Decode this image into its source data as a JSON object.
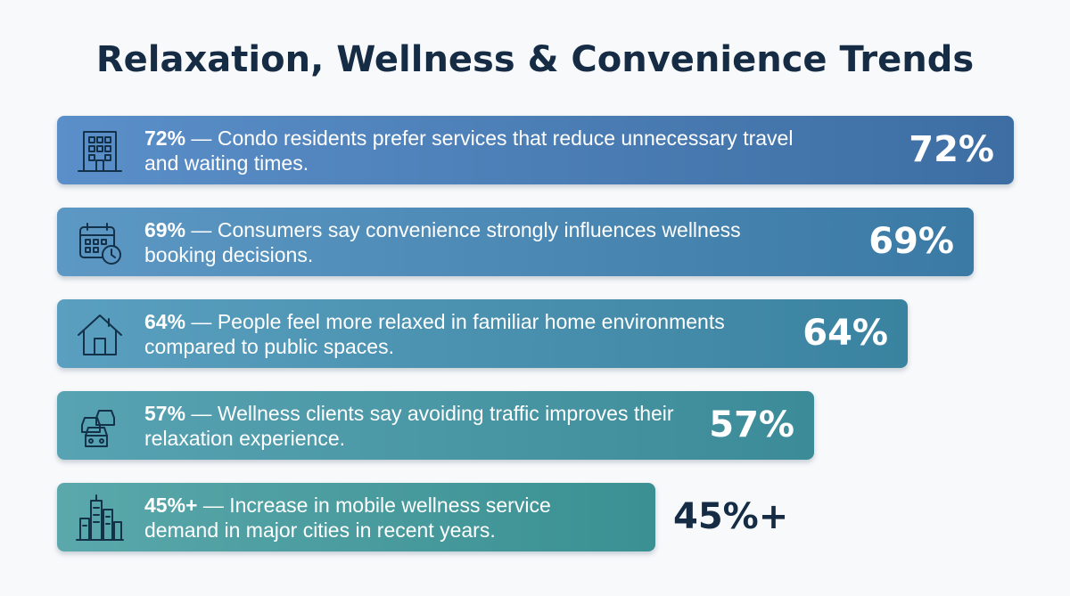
{
  "chart_data": {
    "type": "bar",
    "orientation": "horizontal",
    "title": "Relaxation, Wellness & Convenience Trends",
    "categories": [
      "Condo residents prefer services that reduce unnecessary travel and waiting times.",
      "Consumers say convenience strongly influences wellness booking decisions.",
      "People feel more relaxed in familiar home environments compared to public spaces.",
      "Wellness clients say avoiding traffic improves their relaxation experience.",
      "Increase in mobile wellness service demand in major cities in recent years."
    ],
    "values": [
      72,
      69,
      64,
      57,
      45
    ],
    "value_labels": [
      "72%",
      "69%",
      "64%",
      "57%",
      "45%+"
    ],
    "prefixes": [
      "72%",
      "69%",
      "64%",
      "57%",
      "45%+"
    ],
    "separator": "—",
    "icons": [
      "building-icon",
      "calendar-clock-icon",
      "house-icon",
      "traffic-cars-icon",
      "city-skyline-icon"
    ],
    "colors": {
      "title": "#152c44",
      "outside_value": "#152c44",
      "bar_fills": [
        [
          "#5b8fc9",
          "#3d6ea3"
        ],
        [
          "#5d98c4",
          "#3b7aa5"
        ],
        [
          "#5a9fbf",
          "#3a83a0"
        ],
        [
          "#58a3b3",
          "#3c8b98"
        ],
        [
          "#5aa8ab",
          "#3a9092"
        ]
      ],
      "icon_stroke": "#14314a",
      "text": "#ffffff"
    }
  }
}
